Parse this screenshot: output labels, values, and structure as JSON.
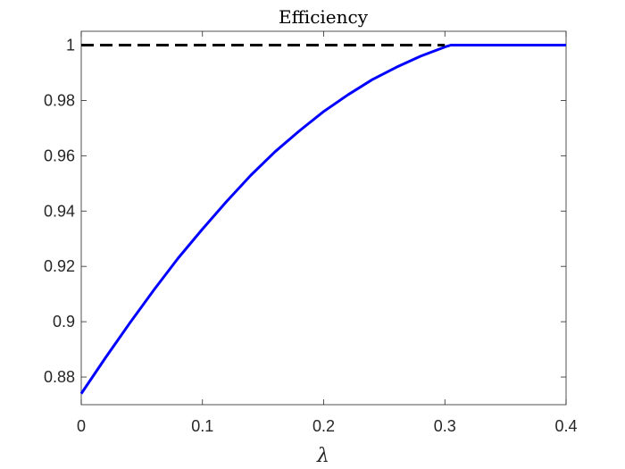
{
  "chart_data": {
    "type": "line",
    "title": "Efficiency",
    "xlabel": "λ",
    "ylabel": "",
    "xlim": [
      0,
      0.4
    ],
    "ylim": [
      0.87,
      1.005
    ],
    "xticks": [
      0,
      0.1,
      0.2,
      0.3,
      0.4
    ],
    "xtick_labels": [
      "0",
      "0.1",
      "0.2",
      "0.3",
      "0.4"
    ],
    "yticks": [
      0.88,
      0.9,
      0.92,
      0.94,
      0.96,
      0.98,
      1.0
    ],
    "ytick_labels": [
      "0.88",
      "0.9",
      "0.92",
      "0.94",
      "0.96",
      "0.98",
      "1"
    ],
    "grid": false,
    "series": [
      {
        "style": "solid",
        "color": "#0000ff",
        "x": [
          0,
          0.02,
          0.04,
          0.06,
          0.08,
          0.1,
          0.12,
          0.14,
          0.16,
          0.18,
          0.2,
          0.22,
          0.24,
          0.26,
          0.28,
          0.3,
          0.305,
          0.32,
          0.34,
          0.36,
          0.38,
          0.4
        ],
        "y": [
          0.874,
          0.887,
          0.8995,
          0.9115,
          0.923,
          0.9335,
          0.9435,
          0.953,
          0.9615,
          0.969,
          0.976,
          0.982,
          0.9875,
          0.992,
          0.996,
          0.9993,
          1.0,
          1.0,
          1.0,
          1.0,
          1.0,
          1.0
        ]
      },
      {
        "style": "dashed",
        "color": "#000000",
        "x": [
          0,
          0.3
        ],
        "y": [
          1.0,
          1.0
        ]
      }
    ]
  }
}
